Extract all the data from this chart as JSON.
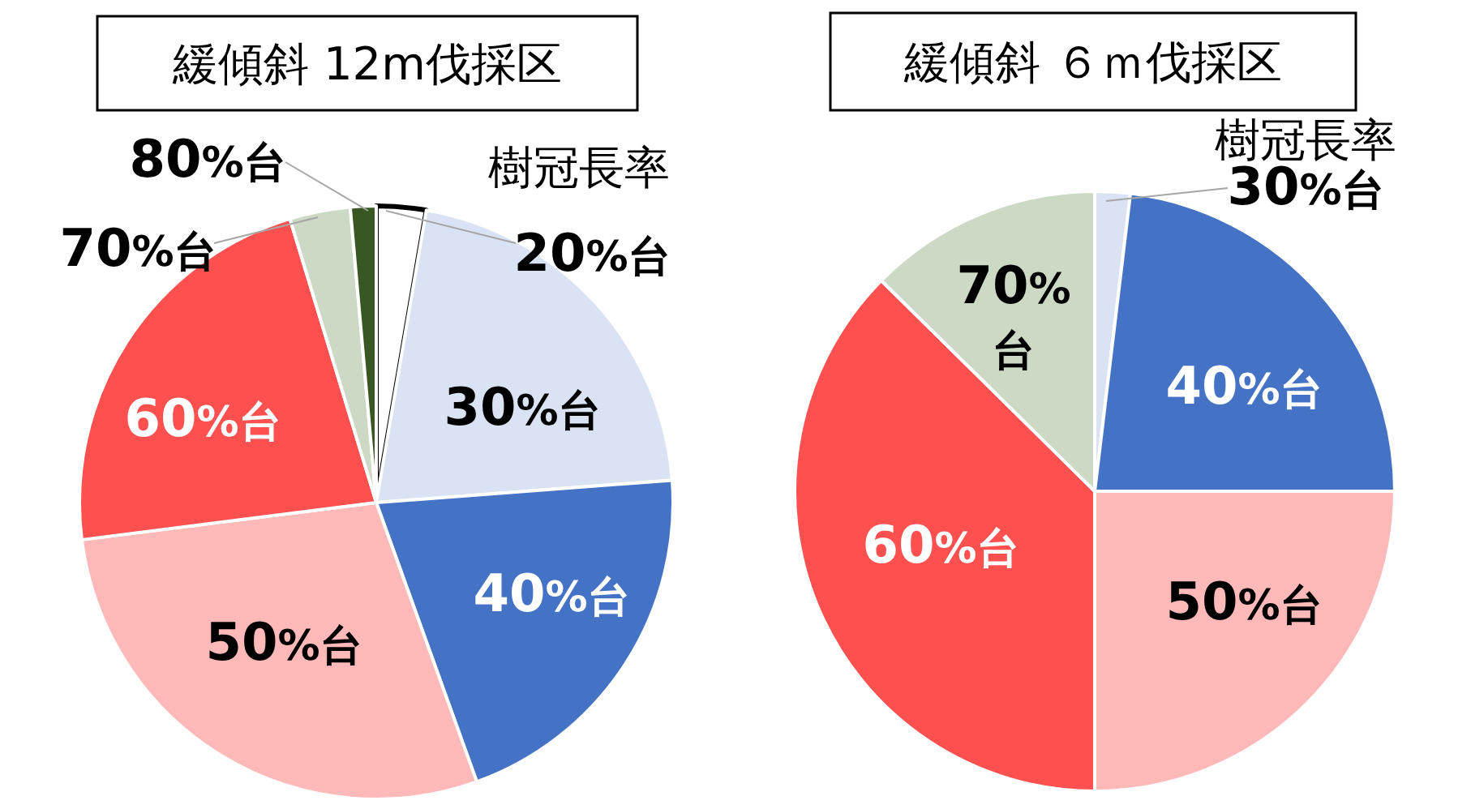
{
  "chart_data": [
    {
      "type": "pie",
      "title": "緩傾斜 12m伐採区",
      "legend_title": "樹冠長率",
      "categories": [
        "20%台",
        "30%台",
        "40%台",
        "50%台",
        "60%台",
        "70%台",
        "80%台"
      ],
      "values": [
        2.7,
        21.1,
        20.7,
        28.5,
        22.3,
        3.3,
        1.4
      ],
      "colors": [
        "#ffffff",
        "#dae3f3",
        "#4472c4",
        "#ffb9b9",
        "#ff5050",
        "#ccd9c5",
        "#385723"
      ]
    },
    {
      "type": "pie",
      "title": "緩傾斜 ６ｍ伐採区",
      "legend_title": "樹冠長率",
      "categories": [
        "30%台",
        "40%台",
        "50%台",
        "60%台",
        "70%台"
      ],
      "values": [
        1.9,
        23.1,
        25,
        37.4,
        12.6
      ],
      "colors": [
        "#dae3f3",
        "#4472c4",
        "#ffb9b9",
        "#ff5050",
        "#ccd9c5"
      ]
    }
  ]
}
